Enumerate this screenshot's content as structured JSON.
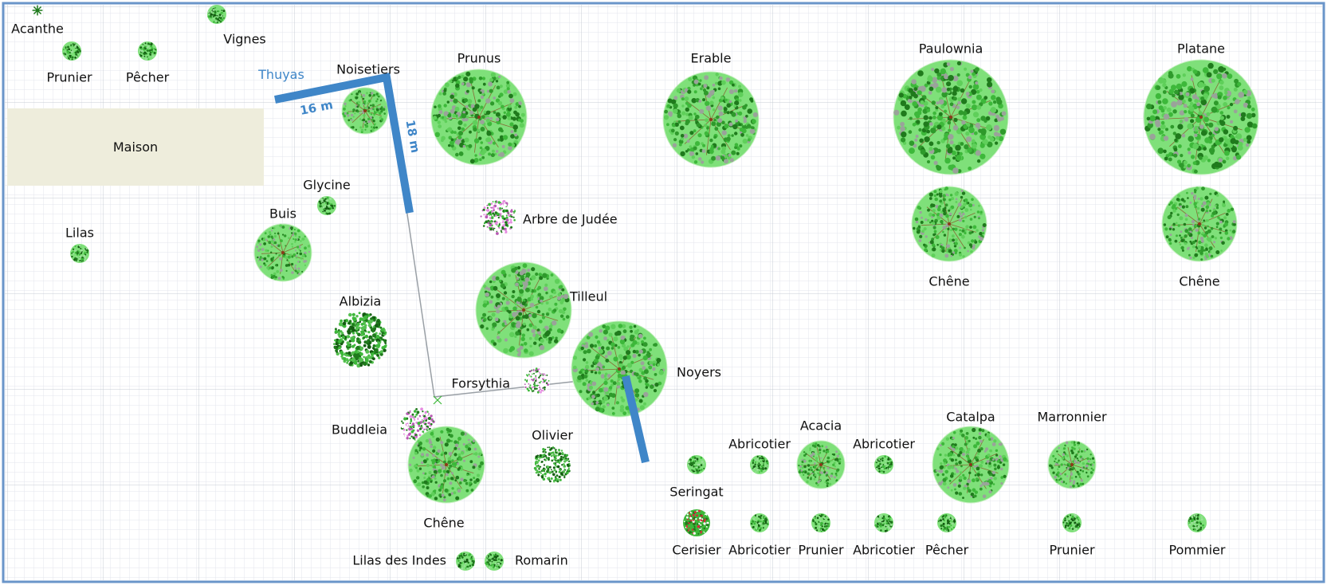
{
  "house": {
    "label": "Maison"
  },
  "hedge": {
    "label": "Thuyas",
    "dim_a": "16 m",
    "dim_b": "18 m"
  },
  "colors": {
    "leaf_light": "#7fe07a",
    "leaf_mid": "#3db83a",
    "leaf_dark": "#1f7a1c",
    "branch": "#8b3a1a",
    "blossom_pink": "#e58be0",
    "blossom_red": "#d8283a",
    "hedge_blue": "#3f86c8",
    "house_fill": "#eeeddc"
  },
  "plants": [
    {
      "label": "Acanthe",
      "kind": "star"
    },
    {
      "label": "Vignes",
      "kind": "shrub"
    },
    {
      "label": "Prunier",
      "kind": "shrub"
    },
    {
      "label": "Pêcher",
      "kind": "shrub"
    },
    {
      "label": "Noisetiers",
      "kind": "tree"
    },
    {
      "label": "Prunus",
      "kind": "tree"
    },
    {
      "label": "Erable",
      "kind": "tree"
    },
    {
      "label": "Paulownia",
      "kind": "tree"
    },
    {
      "label": "Platane",
      "kind": "tree"
    },
    {
      "label": "Glycine",
      "kind": "shrub"
    },
    {
      "label": "Buis",
      "kind": "tree"
    },
    {
      "label": "Lilas",
      "kind": "shrub"
    },
    {
      "label": "Arbre de Judée",
      "kind": "blossom"
    },
    {
      "label": "Chêne",
      "kind": "tree"
    },
    {
      "label": "Chêne",
      "kind": "tree"
    },
    {
      "label": "Tilleul",
      "kind": "tree"
    },
    {
      "label": "Albizia",
      "kind": "dense"
    },
    {
      "label": "Noyers",
      "kind": "tree"
    },
    {
      "label": "Forsythia",
      "kind": "blossom"
    },
    {
      "label": "Buddleia",
      "kind": "blossom"
    },
    {
      "label": "Chêne",
      "kind": "tree"
    },
    {
      "label": "Olivier",
      "kind": "dense"
    },
    {
      "label": "Abricotier",
      "kind": "shrub"
    },
    {
      "label": "Acacia",
      "kind": "tree"
    },
    {
      "label": "Abricotier",
      "kind": "shrub"
    },
    {
      "label": "Catalpa",
      "kind": "tree"
    },
    {
      "label": "Marronnier",
      "kind": "tree"
    },
    {
      "label": "Seringat",
      "kind": "shrub"
    },
    {
      "label": "Cerisier",
      "kind": "cherry"
    },
    {
      "label": "Abricotier",
      "kind": "shrub"
    },
    {
      "label": "Prunier",
      "kind": "shrub"
    },
    {
      "label": "Abricotier",
      "kind": "shrub"
    },
    {
      "label": "Pêcher",
      "kind": "shrub"
    },
    {
      "label": "Prunier",
      "kind": "shrub"
    },
    {
      "label": "Pommier",
      "kind": "shrub"
    },
    {
      "label": "Lilas des Indes",
      "kind": "shrub"
    },
    {
      "label": "Romarin",
      "kind": "shrub"
    }
  ]
}
